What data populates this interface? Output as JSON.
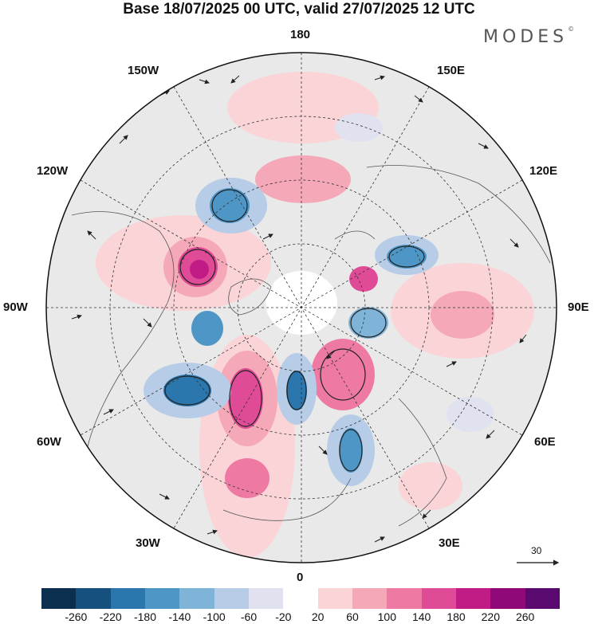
{
  "title": "Base 18/07/2025 00 UTC, valid 27/07/2025 12 UTC",
  "brand": "MODES",
  "brand_mark": "©",
  "longitude_labels": {
    "n180": "180",
    "e150": "150E",
    "w150": "150W",
    "e120": "120E",
    "w120": "120W",
    "w90": "90W",
    "e90": "90E",
    "w60": "60W",
    "e60": "60E",
    "w30": "30W",
    "e30": "30E",
    "n0": "0"
  },
  "reference_vector": {
    "label": "30"
  },
  "colorbar": {
    "colors": [
      "#0d2f4f",
      "#15507e",
      "#2a76ad",
      "#4d96c6",
      "#7fb3d8",
      "#b7cce6",
      "#e1e2f0",
      "#ffffff",
      "#fad4d6",
      "#f5a8b7",
      "#ee7aa4",
      "#df4b96",
      "#c11c86",
      "#8f0a78",
      "#5a0a6e"
    ],
    "tick_labels": [
      "-260",
      "-220",
      "-180",
      "-140",
      "-100",
      "-60",
      "-20",
      "20",
      "60",
      "100",
      "140",
      "180",
      "220",
      "260"
    ]
  }
}
